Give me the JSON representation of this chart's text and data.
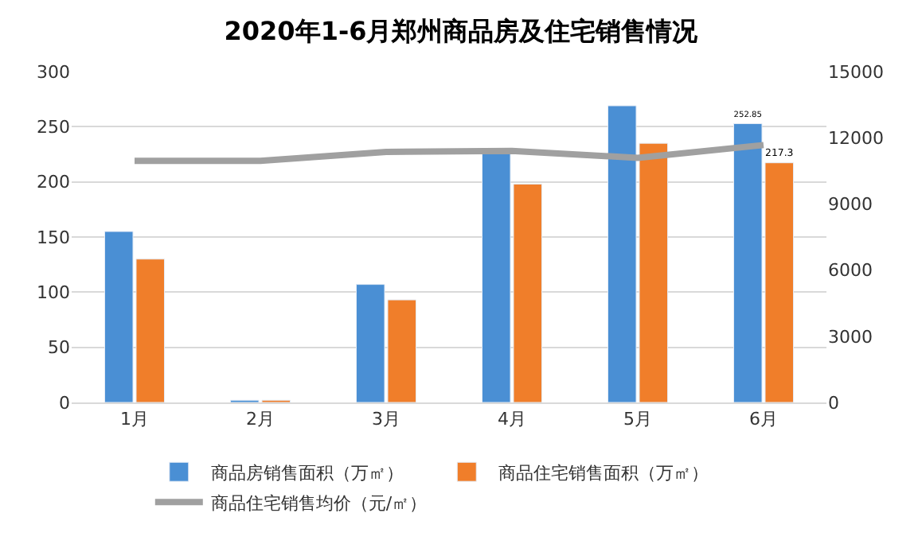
{
  "chart_data": {
    "type": "bar",
    "title": "2020年1-6月郑州商品房及住宅销售情况",
    "categories": [
      "1月",
      "2月",
      "3月",
      "4月",
      "5月",
      "6月"
    ],
    "series": [
      {
        "name": "商品房销售面积（万㎡）",
        "color": "#4a8fd4",
        "values": [
          155,
          2,
          107,
          228,
          269,
          252.85
        ],
        "value_labels": [
          null,
          null,
          null,
          null,
          null,
          "252.85"
        ]
      },
      {
        "name": "商品住宅销售面积（万㎡）",
        "color": "#f07e2a",
        "values": [
          130,
          2,
          93,
          198,
          235,
          217.3
        ],
        "value_labels": [
          null,
          null,
          null,
          null,
          null,
          "217.3"
        ]
      },
      {
        "name": "商品住宅销售均价（元/㎡）",
        "color": "#a0a0a0",
        "type": "line",
        "axis": "y2",
        "values": [
          10950,
          10950,
          11360,
          11400,
          11090,
          11670
        ]
      }
    ],
    "ylim": [
      0,
      300
    ],
    "yticks": [
      0,
      50,
      100,
      150,
      200,
      250,
      300
    ],
    "y2lim": [
      0,
      15000
    ],
    "y2ticks": [
      0,
      3000,
      6000,
      9000,
      12000,
      15000
    ],
    "grid": "y",
    "legend": "bottom",
    "marker": "none",
    "line_style": "solid"
  }
}
